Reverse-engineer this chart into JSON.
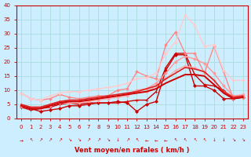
{
  "title": "",
  "xlabel": "Vent moyen/en rafales ( km/h )",
  "ylabel": "",
  "x": [
    0,
    1,
    2,
    3,
    4,
    5,
    6,
    7,
    8,
    9,
    10,
    11,
    12,
    13,
    14,
    15,
    16,
    17,
    18,
    19,
    20,
    21,
    22,
    23
  ],
  "background_color": "#cceeff",
  "grid_color": "#aadddd",
  "series": [
    {
      "name": "dark_red_diamond",
      "y": [
        4.5,
        3.5,
        2.5,
        3.0,
        3.5,
        4.5,
        4.5,
        5.0,
        5.5,
        5.5,
        6.0,
        5.5,
        2.5,
        5.0,
        6.0,
        17.0,
        22.5,
        22.5,
        11.5,
        11.5,
        10.0,
        7.0,
        7.0,
        7.5
      ],
      "color": "#cc0000",
      "lw": 1.0,
      "marker": "D",
      "ms": 2.0
    },
    {
      "name": "dark_red_plus",
      "y": [
        4.0,
        3.0,
        3.5,
        4.0,
        5.0,
        5.5,
        5.0,
        5.5,
        5.5,
        5.5,
        5.5,
        6.0,
        6.5,
        6.5,
        9.5,
        18.0,
        23.0,
        23.0,
        15.5,
        12.0,
        11.5,
        10.0,
        7.0,
        7.5
      ],
      "color": "#cc0000",
      "lw": 1.0,
      "marker": "+",
      "ms": 3.5
    },
    {
      "name": "light_pink_high",
      "y": [
        4.5,
        4.0,
        4.0,
        4.5,
        5.5,
        5.5,
        5.5,
        6.0,
        6.5,
        7.0,
        7.5,
        8.0,
        9.5,
        9.5,
        11.5,
        14.0,
        17.0,
        18.5,
        18.0,
        16.5,
        13.5,
        9.5,
        8.0,
        8.5
      ],
      "color": "#ffaaaa",
      "lw": 1.0,
      "marker": "D",
      "ms": 1.8
    },
    {
      "name": "medium_pink_1",
      "y": [
        4.5,
        4.0,
        4.0,
        5.0,
        6.0,
        6.0,
        6.0,
        6.5,
        7.0,
        7.5,
        8.0,
        8.5,
        10.0,
        10.5,
        12.5,
        16.0,
        20.0,
        22.0,
        21.0,
        19.5,
        16.0,
        11.5,
        8.0,
        8.0
      ],
      "color": "#ff9999",
      "lw": 1.0,
      "marker": "D",
      "ms": 1.8
    },
    {
      "name": "medium_pink_2",
      "y": [
        9.0,
        7.0,
        6.5,
        7.0,
        8.5,
        7.5,
        7.0,
        7.5,
        8.0,
        8.0,
        10.0,
        10.5,
        16.5,
        15.0,
        14.0,
        26.0,
        30.5,
        23.0,
        23.0,
        16.0,
        25.5,
        16.5,
        7.0,
        7.5
      ],
      "color": "#ff8888",
      "lw": 1.0,
      "marker": "D",
      "ms": 1.8
    },
    {
      "name": "lightest_pink_highest",
      "y": [
        9.0,
        7.0,
        6.5,
        8.0,
        9.0,
        9.5,
        9.5,
        10.0,
        10.5,
        11.0,
        11.5,
        12.5,
        14.0,
        14.5,
        16.0,
        23.0,
        27.0,
        36.5,
        33.0,
        25.5,
        26.0,
        17.0,
        13.5,
        13.5
      ],
      "color": "#ffcccc",
      "lw": 1.0,
      "marker": "D",
      "ms": 1.8
    },
    {
      "name": "smooth_dark_red_1",
      "y": [
        4.5,
        3.5,
        3.5,
        4.5,
        5.5,
        6.0,
        6.0,
        6.5,
        7.0,
        7.5,
        8.0,
        8.5,
        9.0,
        9.5,
        10.5,
        12.5,
        14.0,
        15.5,
        15.5,
        15.0,
        12.0,
        9.0,
        7.0,
        7.5
      ],
      "color": "#cc0000",
      "lw": 1.4,
      "marker": null,
      "ms": 0
    },
    {
      "name": "smooth_dark_red_2",
      "y": [
        5.0,
        4.0,
        4.0,
        5.0,
        6.0,
        6.5,
        6.5,
        7.0,
        7.5,
        8.0,
        8.5,
        9.0,
        9.5,
        10.5,
        11.5,
        14.0,
        16.0,
        18.0,
        17.5,
        16.5,
        13.5,
        9.5,
        7.5,
        8.0
      ],
      "color": "#dd2222",
      "lw": 1.2,
      "marker": null,
      "ms": 0
    }
  ],
  "wind_arrows": [
    "→",
    "↖",
    "↗",
    "↗",
    "↗",
    "↘",
    "↘",
    "↗",
    "↗",
    "↘",
    "↓",
    "↗",
    "↖",
    "←",
    "←",
    "←",
    "↖",
    "↖",
    "↖",
    "↖",
    "↓",
    "↓",
    "↘",
    "↘"
  ],
  "ylim": [
    0,
    40
  ],
  "xlim": [
    -0.5,
    23.5
  ],
  "yticks": [
    0,
    5,
    10,
    15,
    20,
    25,
    30,
    35,
    40
  ],
  "xticks": [
    0,
    1,
    2,
    3,
    4,
    5,
    6,
    7,
    8,
    9,
    10,
    11,
    12,
    13,
    14,
    15,
    16,
    17,
    18,
    19,
    20,
    21,
    22,
    23
  ],
  "label_color": "#cc0000",
  "axis_color": "#cc0000",
  "tick_color": "#cc0000"
}
